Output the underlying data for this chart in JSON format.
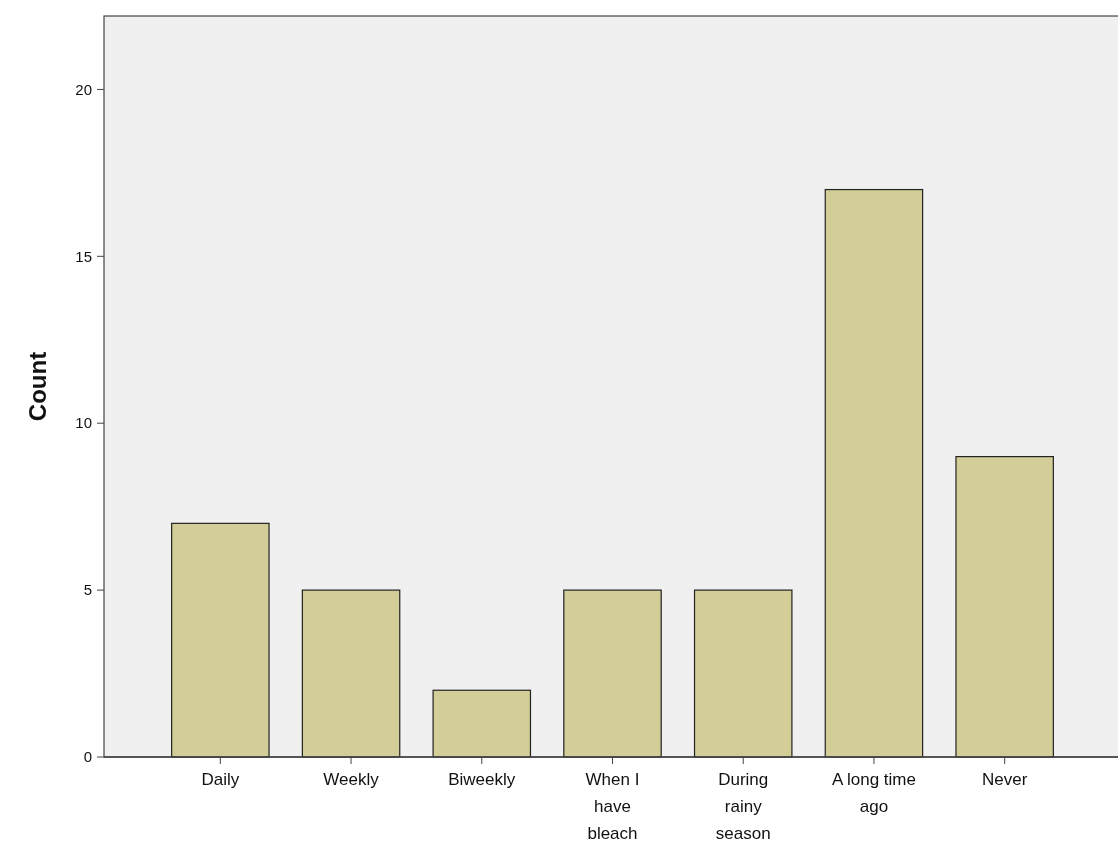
{
  "chart_data": {
    "type": "bar",
    "ylabel": "Count",
    "categories": [
      "Daily",
      "Weekly",
      "Biweekly",
      "When I have bleach",
      "During rainy season",
      "A long time ago",
      "Never"
    ],
    "values": [
      7,
      5,
      2,
      5,
      5,
      17,
      9
    ],
    "color": "#d3ce97",
    "ylim": [
      0,
      22.2
    ],
    "yticks": [
      0,
      5,
      10,
      15,
      20
    ],
    "grid": false
  }
}
